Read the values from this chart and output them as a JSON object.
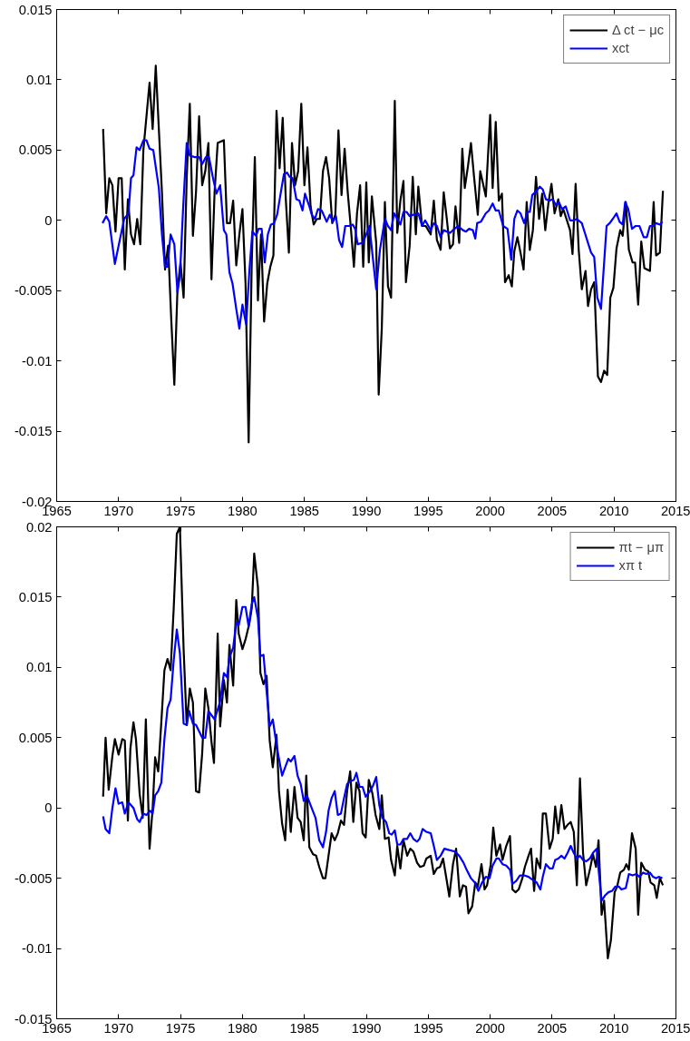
{
  "chart_data": [
    {
      "type": "line",
      "xlim": [
        1965,
        2015
      ],
      "ylim": [
        -0.02,
        0.015
      ],
      "xticks": [
        1965,
        1970,
        1975,
        1980,
        1985,
        1990,
        1995,
        2000,
        2005,
        2010,
        2015
      ],
      "yticks": [
        -0.02,
        -0.015,
        -0.01,
        -0.005,
        0,
        0.005,
        0.01,
        0.015
      ],
      "grid": false,
      "legend": "top right",
      "line_style": "solid",
      "marker": "none",
      "series": [
        {
          "name": "Δ ct − μc",
          "color": "#000000",
          "x": [
            1968.75,
            1969.0,
            1969.25,
            1969.5,
            1969.75,
            1970.0,
            1970.25,
            1970.5,
            1970.75,
            1971.0,
            1971.25,
            1971.5,
            1971.75,
            1972.0,
            1972.5,
            1972.75,
            1973.0,
            1973.5,
            1973.75,
            1974.0,
            1974.25,
            1974.5,
            1974.75,
            1975.0,
            1975.25,
            1975.5,
            1975.75,
            1976.0,
            1976.25,
            1976.5,
            1976.75,
            1977.0,
            1977.25,
            1977.5,
            1977.75,
            1978.0,
            1978.5,
            1978.75,
            1979.0,
            1979.25,
            1979.5,
            1979.75,
            1980.0,
            1980.25,
            1980.5,
            1980.75,
            1981.0,
            1981.25,
            1981.5,
            1981.75,
            1982.0,
            1982.25,
            1982.5,
            1982.75,
            1983.0,
            1983.25,
            1983.5,
            1983.75,
            1984.0,
            1984.25,
            1984.5,
            1984.75,
            1985.0,
            1985.25,
            1985.5,
            1985.75,
            1986.0,
            1986.25,
            1986.5,
            1986.75,
            1987.0,
            1987.25,
            1987.5,
            1987.75,
            1988.0,
            1988.25,
            1988.5,
            1988.75,
            1989.0,
            1989.25,
            1989.5,
            1989.75,
            1990.0,
            1990.2,
            1990.45,
            1990.8,
            1991.0,
            1991.25,
            1991.5,
            1991.75,
            1992.0,
            1992.3,
            1992.5,
            1992.75,
            1993.0,
            1993.2,
            1993.5,
            1993.75,
            1994.0,
            1994.2,
            1994.5,
            1994.8,
            1995.2,
            1995.45,
            1995.7,
            1996.0,
            1996.25,
            1996.5,
            1996.75,
            1997.0,
            1997.2,
            1997.5,
            1997.75,
            1997.95,
            1998.2,
            1998.45,
            1998.7,
            1999.0,
            1999.2,
            1999.65,
            2000.0,
            2000.2,
            2000.45,
            2000.7,
            2000.95,
            2001.2,
            2001.5,
            2001.75,
            2001.95,
            2002.2,
            2002.45,
            2002.7,
            2002.95,
            2003.2,
            2003.45,
            2003.7,
            2003.95,
            2004.2,
            2004.45,
            2004.7,
            2004.95,
            2005.2,
            2005.5,
            2005.7,
            2005.9,
            2006.2,
            2006.45,
            2006.65,
            2006.9,
            2007.15,
            2007.4,
            2007.7,
            2007.9,
            2008.15,
            2008.4,
            2008.7,
            2008.95,
            2009.2,
            2009.45,
            2009.7,
            2009.95,
            2010.2,
            2010.5,
            2010.7,
            2010.95,
            2011.2,
            2011.5,
            2011.7,
            2011.95,
            2012.2,
            2012.45,
            2012.9,
            2013.2,
            2013.4,
            2013.7,
            2013.95
          ],
          "values": [
            0.0065,
            0.0005,
            0.003,
            0.0025,
            -0.0008,
            0.003,
            0.003,
            -0.0035,
            0.0015,
            -0.001,
            -0.0017,
            0.0001,
            -0.0017,
            0.005,
            0.0098,
            0.0065,
            0.011,
            0.002,
            -0.0035,
            -0.0018,
            -0.007,
            -0.0117,
            -0.005,
            -0.003,
            -0.0055,
            0.003,
            0.0083,
            -0.0011,
            0.002,
            0.0074,
            0.0025,
            0.0035,
            0.0055,
            -0.0042,
            0.002,
            0.0055,
            0.0057,
            -0.0002,
            -0.0002,
            0.0014,
            -0.0032,
            -0.001,
            0.0008,
            -0.0045,
            -0.0158,
            -0.003,
            0.0045,
            -0.0057,
            -0.001,
            -0.0072,
            -0.0045,
            -0.0033,
            -0.0025,
            0.0078,
            0.0037,
            0.0073,
            0.0015,
            -0.0023,
            0.0055,
            0.0025,
            0.0035,
            0.0083,
            0.0025,
            0.0052,
            0.001,
            -0.0003,
            0.0001,
            0.0001,
            0.0035,
            0.0045,
            0.003,
            -0.0002,
            0.0004,
            0.0064,
            0.0018,
            0.0051,
            0.002,
            -0.0005,
            -0.0033,
            0.0005,
            0.0025,
            -0.0033,
            0.0027,
            -0.003,
            0.0017,
            -0.0016,
            -0.0124,
            -0.0077,
            0.0013,
            -0.0047,
            -0.0055,
            0.0085,
            -0.0009,
            0.0014,
            0.0028,
            -0.0044,
            -0.0018,
            0.0031,
            -0.001,
            0.0024,
            -0.0004,
            -0.0004,
            -0.001,
            0.0014,
            -0.0014,
            -0.0021,
            0.002,
            0.0001,
            -0.002,
            -0.0017,
            0.001,
            -0.0016,
            0.0051,
            0.0023,
            0.0038,
            0.0055,
            0.0031,
            0.0004,
            0.0035,
            0.0017,
            0.0075,
            0.0023,
            0.007,
            0.0014,
            0.0019,
            -0.0044,
            -0.0039,
            -0.0047,
            -0.0022,
            -0.0012,
            -0.0023,
            -0.0035,
            0.0013,
            -0.0021,
            -0.0007,
            0.0031,
            0.0001,
            0.0019,
            -0.0007,
            0.0012,
            0.0026,
            0.0005,
            0.0015,
            0.0003,
            0.0008,
            0.0,
            -0.0007,
            -0.0024,
            0.0026,
            -0.0021,
            -0.0049,
            -0.0036,
            -0.0061,
            -0.0049,
            -0.0044,
            -0.0111,
            -0.0115,
            -0.0107,
            -0.011,
            -0.0055,
            -0.0048,
            -0.002,
            -0.0007,
            -0.0011,
            0.0013,
            -0.0021,
            -0.003,
            -0.003,
            -0.006,
            -0.0015,
            -0.0034,
            -0.0036,
            0.0013,
            -0.0025,
            -0.0023,
            0.0021
          ]
        },
        {
          "name": "xct",
          "color": "#0000ff",
          "x": [
            1968.7,
            1969.0,
            1969.25,
            1969.7,
            1970.05,
            1970.45,
            1970.8,
            1971.0,
            1971.2,
            1971.45,
            1971.7,
            1972.0,
            1972.25,
            1972.5,
            1972.8,
            1973.25,
            1973.5,
            1973.75,
            1973.95,
            1974.2,
            1974.5,
            1974.75,
            1974.95,
            1975.2,
            1975.5,
            1975.75,
            1976.15,
            1976.5,
            1976.75,
            1977.05,
            1977.3,
            1977.6,
            1977.9,
            1978.2,
            1978.5,
            1978.7,
            1978.95,
            1979.2,
            1979.5,
            1979.75,
            1980.0,
            1980.3,
            1980.55,
            1980.8,
            1981.1,
            1981.3,
            1981.55,
            1981.8,
            1982.05,
            1982.3,
            1982.55,
            1982.8,
            1983.1,
            1983.35,
            1983.6,
            1983.8,
            1984.05,
            1984.35,
            1984.6,
            1984.85,
            1985.05,
            1985.4,
            1985.6,
            1985.85,
            1986.1,
            1986.4,
            1986.6,
            1986.8,
            1987.05,
            1987.3,
            1987.55,
            1987.8,
            1988.05,
            1988.3,
            1988.6,
            1988.9,
            1989.1,
            1989.3,
            1989.7,
            1989.95,
            1990.25,
            1990.8,
            1991.1,
            1991.5,
            1991.75,
            1992.0,
            1992.25,
            1992.5,
            1992.75,
            1993.0,
            1993.25,
            1993.5,
            1993.8,
            1994.2,
            1994.5,
            1994.75,
            1995.2,
            1995.45,
            1995.7,
            1996.0,
            1996.25,
            1996.75,
            1997.0,
            1997.4,
            1997.8,
            1998.05,
            1998.3,
            1998.6,
            1998.8,
            1998.95,
            1999.25,
            1999.65,
            1999.9,
            2000.2,
            2000.45,
            2000.7,
            2001.05,
            2001.4,
            2001.7,
            2001.95,
            2002.2,
            2002.45,
            2002.75,
            2003.0,
            2003.2,
            2003.4,
            2003.75,
            2004.0,
            2004.25,
            2004.5,
            2004.8,
            2005.05,
            2005.3,
            2005.55,
            2005.8,
            2006.1,
            2006.45,
            2006.75,
            2007.0,
            2007.4,
            2007.65,
            2007.9,
            2008.15,
            2008.4,
            2008.65,
            2008.95,
            2009.4,
            2009.65,
            2009.9,
            2010.2,
            2010.45,
            2010.7,
            2010.9,
            2011.15,
            2011.45,
            2011.75,
            2012.05,
            2012.4,
            2012.65,
            2012.9,
            2013.15,
            2013.4,
            2013.7,
            2013.9
          ],
          "values": [
            -0.0002,
            0.0003,
            -0.0001,
            -0.0031,
            -0.0016,
            0.0001,
            0.0005,
            0.003,
            0.0032,
            0.0052,
            0.005,
            0.0057,
            0.0057,
            0.0051,
            0.005,
            0.0023,
            -0.001,
            -0.0033,
            -0.0033,
            -0.001,
            -0.0017,
            -0.0051,
            -0.004,
            0.0007,
            0.0055,
            0.0046,
            0.0045,
            0.0045,
            0.004,
            0.0045,
            0.0045,
            0.0031,
            0.0019,
            0.0025,
            -0.0007,
            -0.001,
            -0.0037,
            -0.0045,
            -0.0063,
            -0.0077,
            -0.006,
            -0.0074,
            -0.0037,
            -0.0008,
            -0.0011,
            -0.0006,
            -0.0006,
            -0.003,
            -0.001,
            -0.0003,
            -0.0002,
            0.0004,
            0.002,
            0.0033,
            0.0034,
            0.0031,
            0.003,
            0.0015,
            0.0014,
            0.0007,
            0.0019,
            0.001,
            0.0004,
            0.0001,
            0.0008,
            0.0007,
            0.0003,
            -0.0001,
            0.0004,
            -0.0001,
            0.0003,
            -0.0014,
            -0.0019,
            -0.0004,
            -0.0004,
            -0.0003,
            -0.0006,
            -0.0017,
            -0.0016,
            -0.0011,
            -0.0004,
            -0.0049,
            -0.0021,
            0.0001,
            -0.0004,
            -0.0007,
            0.0005,
            0.0001,
            -0.0003,
            0.0006,
            0.0006,
            0.0003,
            0.0004,
            0.0005,
            -0.0004,
            0.0,
            -0.0007,
            -0.0002,
            -0.0004,
            -0.0012,
            -0.0007,
            -0.0009,
            -0.0007,
            -0.0004,
            -0.0007,
            -0.0008,
            -0.0006,
            -0.0007,
            -0.0013,
            -0.0002,
            -0.0001,
            0.0005,
            0.0007,
            0.0012,
            0.0007,
            0.0007,
            -0.0004,
            -0.0006,
            -0.0028,
            0.0001,
            0.0007,
            0.0005,
            -0.0002,
            0.0006,
            0.0006,
            0.0018,
            0.0021,
            0.0024,
            0.0022,
            0.0015,
            0.0014,
            0.0015,
            0.0011,
            0.0013,
            0.0008,
            0.001,
            0.0,
            0.0,
            0.0001,
            -0.0002,
            -0.0009,
            -0.0016,
            -0.0023,
            -0.0026,
            -0.0055,
            -0.0063,
            -0.0004,
            -0.0002,
            0.0001,
            0.0005,
            -0.0001,
            -0.0003,
            0.0013,
            0.0008,
            -0.0006,
            -0.0004,
            -0.0004,
            -0.0012,
            -0.0012,
            -0.0004,
            -0.0004,
            -0.0002,
            -0.0003,
            -0.0001
          ]
        }
      ]
    },
    {
      "type": "line",
      "xlim": [
        1965,
        2015
      ],
      "ylim": [
        -0.015,
        0.02
      ],
      "xticks": [
        1965,
        1970,
        1975,
        1980,
        1985,
        1990,
        1995,
        2000,
        2005,
        2010,
        2015
      ],
      "yticks": [
        -0.015,
        -0.01,
        -0.005,
        0,
        0.005,
        0.01,
        0.015,
        0.02
      ],
      "grid": false,
      "legend": "top right",
      "line_style": "solid",
      "marker": "none",
      "series": [
        {
          "name": "πt − μπ",
          "color": "#000000",
          "x": [
            1968.75,
            1968.95,
            1969.2,
            1969.5,
            1969.7,
            1970.0,
            1970.3,
            1970.5,
            1970.75,
            1970.95,
            1971.2,
            1971.4,
            1971.7,
            1971.95,
            1972.2,
            1972.5,
            1972.75,
            1972.95,
            1973.2,
            1973.45,
            1973.7,
            1973.95,
            1974.2,
            1974.45,
            1974.7,
            1974.95,
            1975.25,
            1975.5,
            1975.75,
            1976.0,
            1976.25,
            1976.5,
            1976.75,
            1977.0,
            1977.25,
            1977.5,
            1977.7,
            1978.0,
            1978.2,
            1978.5,
            1978.75,
            1978.95,
            1979.25,
            1979.5,
            1979.7,
            1980.0,
            1980.25,
            1980.55,
            1980.75,
            1980.95,
            1981.25,
            1981.45,
            1981.7,
            1981.95,
            1982.2,
            1982.45,
            1982.75,
            1982.95,
            1983.2,
            1983.45,
            1983.65,
            1983.9,
            1984.2,
            1984.45,
            1984.7,
            1984.95,
            1985.15,
            1985.4,
            1985.7,
            1985.95,
            1986.2,
            1986.5,
            1986.7,
            1986.95,
            1987.2,
            1987.45,
            1987.7,
            1987.95,
            1988.2,
            1988.45,
            1988.7,
            1988.95,
            1989.2,
            1989.45,
            1989.7,
            1989.95,
            1990.2,
            1990.5,
            1990.75,
            1991.05,
            1991.25,
            1991.5,
            1991.8,
            1992.0,
            1992.3,
            1992.5,
            1992.75,
            1993.0,
            1993.3,
            1993.55,
            1993.8,
            1994.1,
            1994.35,
            1994.65,
            1994.85,
            1995.2,
            1995.45,
            1995.7,
            1995.95,
            1996.2,
            1996.5,
            1996.7,
            1997.0,
            1997.25,
            1997.55,
            1997.8,
            1998.05,
            1998.25,
            1998.55,
            1998.8,
            1999.0,
            1999.3,
            1999.55,
            1999.75,
            2000.05,
            2000.25,
            2000.5,
            2000.8,
            2001.0,
            2001.3,
            2001.6,
            2001.8,
            2002.05,
            2002.3,
            2002.6,
            2002.8,
            2003.1,
            2003.3,
            2003.55,
            2003.75,
            2004.05,
            2004.25,
            2004.5,
            2004.8,
            2005.05,
            2005.25,
            2005.5,
            2005.75,
            2006.0,
            2006.25,
            2006.5,
            2006.75,
            2007.0,
            2007.25,
            2007.5,
            2007.75,
            2008.05,
            2008.3,
            2008.55,
            2008.75,
            2009.0,
            2009.2,
            2009.5,
            2009.75,
            2010.05,
            2010.25,
            2010.5,
            2010.8,
            2011.0,
            2011.2,
            2011.45,
            2011.75,
            2011.95,
            2012.2,
            2012.5,
            2012.75,
            2012.95,
            2013.25,
            2013.45,
            2013.7,
            2013.95
          ],
          "values": [
            0.0008,
            0.005,
            0.0013,
            0.0037,
            0.0049,
            0.0038,
            0.0049,
            0.0048,
            -0.0009,
            0.0042,
            0.0061,
            0.0049,
            0.001,
            -0.0007,
            0.0063,
            -0.0029,
            0.0,
            0.0036,
            0.0026,
            0.0061,
            0.0098,
            0.0106,
            0.0098,
            0.0142,
            0.0195,
            0.02,
            0.0113,
            0.0059,
            0.0085,
            0.0075,
            0.0012,
            0.0011,
            0.0039,
            0.0085,
            0.0071,
            0.0047,
            0.0032,
            0.0124,
            0.0058,
            0.0091,
            0.0075,
            0.0116,
            0.0087,
            0.0148,
            0.0124,
            0.0113,
            0.012,
            0.0131,
            0.0142,
            0.0181,
            0.0157,
            0.0096,
            0.0088,
            0.0094,
            0.0048,
            0.0029,
            0.0052,
            0.0012,
            -0.0011,
            -0.0023,
            0.0013,
            -0.0017,
            0.0015,
            -0.0007,
            -0.001,
            -0.0023,
            0.0023,
            -0.0028,
            -0.0033,
            -0.0034,
            -0.0042,
            -0.005,
            -0.005,
            -0.0034,
            -0.0018,
            -0.0023,
            -0.0018,
            -0.0009,
            -0.0012,
            0.0012,
            0.0026,
            -0.001,
            0.0018,
            0.0012,
            -0.0018,
            -0.0021,
            0.002,
            0.001,
            -0.0005,
            -0.0015,
            0.0009,
            -0.0022,
            -0.0021,
            -0.0037,
            -0.0048,
            -0.0027,
            -0.0043,
            -0.0023,
            -0.0034,
            -0.0029,
            -0.0031,
            -0.0039,
            -0.0042,
            -0.0041,
            -0.0036,
            -0.0034,
            -0.0047,
            -0.0043,
            -0.0042,
            -0.0036,
            -0.0052,
            -0.0063,
            -0.004,
            -0.0029,
            -0.0063,
            -0.0055,
            -0.0056,
            -0.0075,
            -0.007,
            -0.0053,
            -0.0056,
            -0.004,
            -0.0058,
            -0.0055,
            -0.004,
            -0.0014,
            -0.0034,
            -0.0026,
            -0.0037,
            -0.0027,
            -0.002,
            -0.0058,
            -0.006,
            -0.0058,
            -0.005,
            -0.0042,
            -0.0034,
            -0.0029,
            -0.0059,
            -0.0036,
            -0.0043,
            -0.0004,
            -0.0004,
            -0.0029,
            -0.0022,
            0.0001,
            -0.0018,
            0.0002,
            -0.0015,
            -0.0012,
            -0.001,
            -0.0017,
            -0.0055,
            0.0021,
            -0.0032,
            -0.0055,
            -0.0044,
            -0.0033,
            -0.0042,
            -0.0023,
            -0.0076,
            -0.0066,
            -0.0107,
            -0.0094,
            -0.006,
            -0.0056,
            -0.0046,
            -0.0044,
            -0.004,
            -0.0044,
            -0.0018,
            -0.0029,
            -0.0076,
            -0.0039,
            -0.0044,
            -0.0045,
            -0.0053,
            -0.0055,
            -0.0064,
            -0.005,
            -0.0055
          ]
        },
        {
          "name": "xπ t",
          "color": "#0000ff",
          "x": [
            1968.75,
            1968.95,
            1969.25,
            1969.5,
            1969.75,
            1970.0,
            1970.3,
            1970.5,
            1970.8,
            1971.2,
            1971.5,
            1971.7,
            1972.0,
            1972.25,
            1972.55,
            1972.75,
            1972.95,
            1973.2,
            1973.45,
            1973.7,
            1973.95,
            1974.2,
            1974.45,
            1974.7,
            1974.95,
            1975.25,
            1975.5,
            1975.7,
            1976.0,
            1976.25,
            1976.75,
            1977.0,
            1977.25,
            1977.5,
            1977.75,
            1978.0,
            1978.2,
            1978.5,
            1978.75,
            1978.95,
            1979.25,
            1979.5,
            1979.7,
            1980.0,
            1980.25,
            1980.5,
            1980.75,
            1980.95,
            1981.25,
            1981.45,
            1981.7,
            1981.95,
            1982.2,
            1982.45,
            1982.75,
            1982.95,
            1983.2,
            1983.45,
            1983.7,
            1983.9,
            1984.2,
            1984.45,
            1984.7,
            1984.95,
            1985.2,
            1985.5,
            1985.9,
            1986.2,
            1986.5,
            1986.75,
            1986.95,
            1987.2,
            1987.45,
            1987.7,
            1987.95,
            1988.2,
            1988.45,
            1988.7,
            1989.0,
            1989.2,
            1989.45,
            1989.7,
            1989.95,
            1990.3,
            1990.55,
            1990.8,
            1991.05,
            1991.3,
            1991.6,
            1991.85,
            1992.05,
            1992.3,
            1992.5,
            1992.75,
            1993.0,
            1993.3,
            1993.55,
            1993.8,
            1994.1,
            1994.3,
            1994.55,
            1994.85,
            1995.2,
            1995.45,
            1995.7,
            1996.0,
            1996.3,
            1996.7,
            1997.15,
            1997.5,
            1997.85,
            1998.1,
            1998.45,
            1998.75,
            1999.05,
            1999.35,
            1999.65,
            1999.95,
            2000.2,
            2000.5,
            2000.7,
            2001.0,
            2001.3,
            2001.6,
            2001.8,
            2002.1,
            2002.4,
            2002.75,
            2003.1,
            2003.4,
            2003.75,
            2004.05,
            2004.25,
            2004.5,
            2004.8,
            2005.05,
            2005.25,
            2005.5,
            2005.75,
            2006.0,
            2006.25,
            2006.5,
            2006.75,
            2007.0,
            2007.25,
            2007.5,
            2007.75,
            2008.05,
            2008.3,
            2008.6,
            2008.8,
            2009.0,
            2009.3,
            2009.55,
            2009.85,
            2010.1,
            2010.4,
            2010.6,
            2010.95,
            2011.2,
            2011.5,
            2011.8,
            2012.05,
            2012.35,
            2012.6,
            2012.9,
            2013.15,
            2013.4,
            2013.6,
            2013.9
          ],
          "values": [
            -0.0006,
            -0.0015,
            -0.0018,
            0.0,
            0.0014,
            0.0003,
            0.0004,
            -0.0004,
            0.0004,
            0.0,
            -0.0008,
            -0.001,
            -0.0004,
            -0.0005,
            -0.0002,
            -0.0004,
            0.0009,
            0.0012,
            0.0018,
            0.0049,
            0.0071,
            0.0077,
            0.0105,
            0.0127,
            0.011,
            0.006,
            0.0059,
            0.0069,
            0.006,
            0.0059,
            0.005,
            0.005,
            0.0069,
            0.0066,
            0.0063,
            0.007,
            0.0076,
            0.0096,
            0.0093,
            0.0107,
            0.0114,
            0.0132,
            0.013,
            0.0143,
            0.0143,
            0.0129,
            0.0145,
            0.015,
            0.0135,
            0.0108,
            0.0109,
            0.0083,
            0.0058,
            0.0063,
            0.0045,
            0.0035,
            0.0023,
            0.0029,
            0.0035,
            0.0033,
            0.0037,
            0.0023,
            0.0017,
            0.0005,
            0.0009,
            0.0002,
            -0.0007,
            -0.0023,
            -0.0028,
            -0.0017,
            -0.0002,
            0.0007,
            0.0012,
            -0.0005,
            -0.0004,
            0.0007,
            0.0017,
            0.0019,
            0.002,
            0.0025,
            0.0015,
            0.0015,
            0.0008,
            0.0012,
            0.0016,
            0.0022,
            0.0002,
            -0.0007,
            -0.001,
            -0.0018,
            -0.0019,
            -0.0016,
            -0.0026,
            -0.0026,
            -0.0022,
            -0.0022,
            -0.0018,
            -0.0022,
            -0.0024,
            -0.0022,
            -0.0015,
            -0.0017,
            -0.0018,
            -0.0027,
            -0.0037,
            -0.0034,
            -0.0029,
            -0.003,
            -0.0031,
            -0.0034,
            -0.0039,
            -0.0044,
            -0.005,
            -0.0053,
            -0.0059,
            -0.0053,
            -0.0049,
            -0.005,
            -0.0041,
            -0.0036,
            -0.0036,
            -0.004,
            -0.0041,
            -0.0044,
            -0.0054,
            -0.0052,
            -0.0048,
            -0.0048,
            -0.0049,
            -0.0051,
            -0.0053,
            -0.0058,
            -0.0049,
            -0.004,
            -0.0043,
            -0.0043,
            -0.0037,
            -0.0036,
            -0.0034,
            -0.0036,
            -0.0032,
            -0.0027,
            -0.0032,
            -0.0036,
            -0.0034,
            -0.0037,
            -0.0038,
            -0.0036,
            -0.0032,
            -0.0029,
            -0.0048,
            -0.0066,
            -0.0062,
            -0.006,
            -0.0059,
            -0.0056,
            -0.0056,
            -0.0058,
            -0.0057,
            -0.0047,
            -0.0048,
            -0.0047,
            -0.0049,
            -0.0046,
            -0.0047,
            -0.0046,
            -0.0049,
            -0.005,
            -0.0049,
            -0.005
          ]
        }
      ]
    }
  ]
}
